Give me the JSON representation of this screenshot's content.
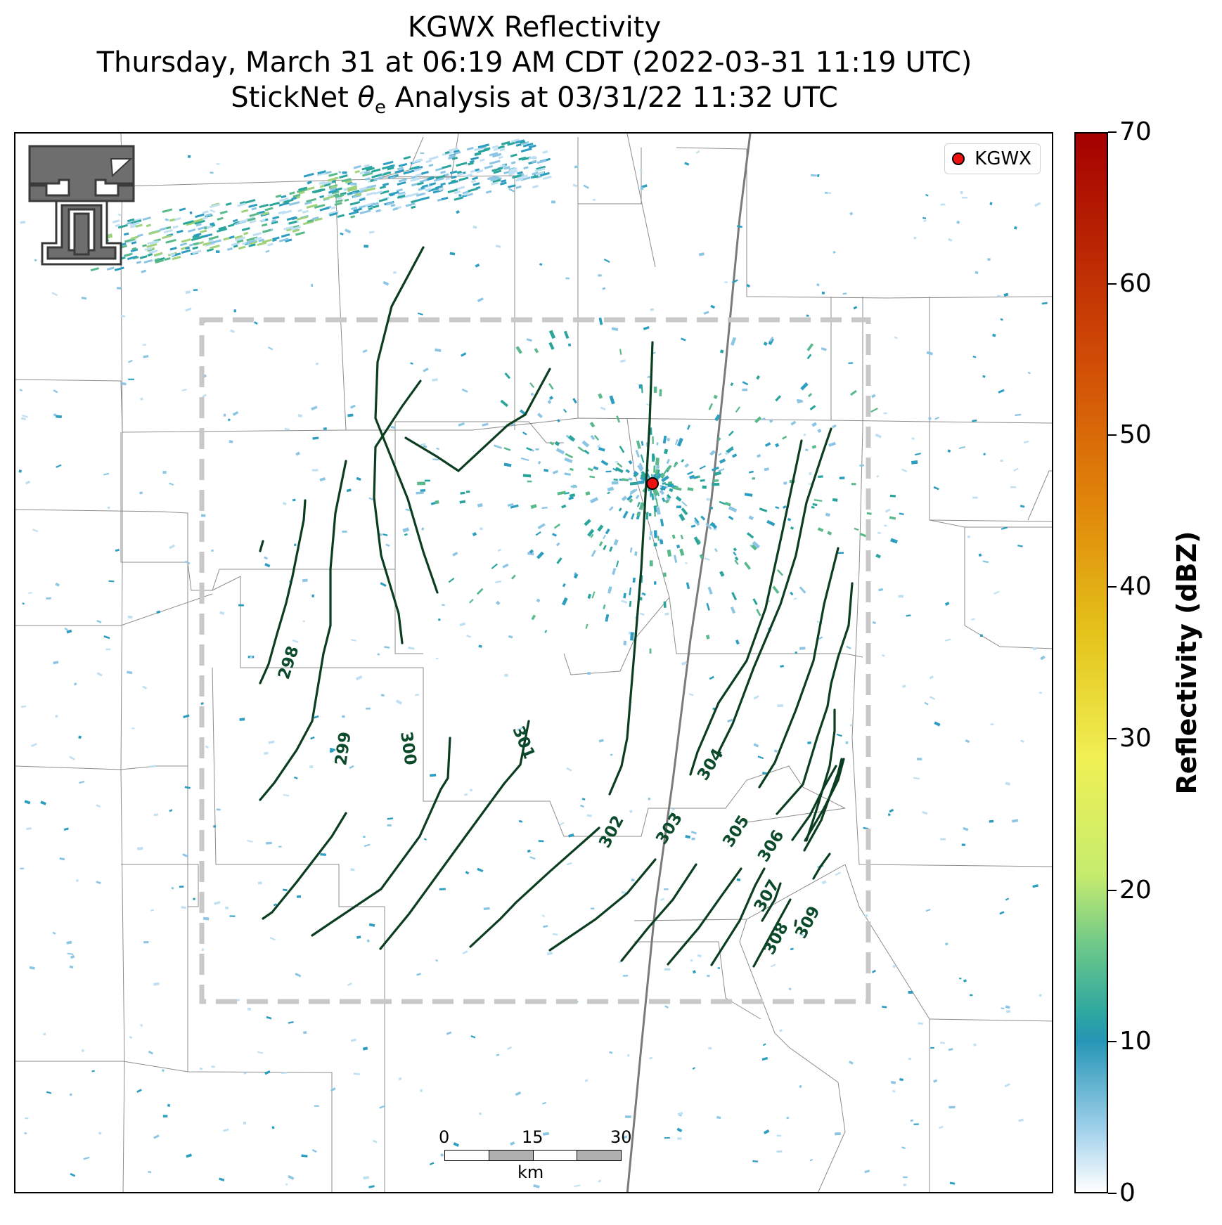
{
  "title": {
    "line1": "KGWX Reflectivity",
    "line2": "Thursday, March 31 at 06:19 AM CDT (2022-03-31 11:19 UTC)",
    "line3_prefix": "StickNet ",
    "line3_symbol": "θ",
    "line3_subscript": "e",
    "line3_suffix": " Analysis at 03/31/22 11:32 UTC"
  },
  "legend": {
    "label": "KGWX",
    "marker_color": "#ee1111"
  },
  "colorbar": {
    "title": "Reflectivity (dBZ)",
    "min": 0,
    "max": 70,
    "ticks": [
      "0",
      "10",
      "20",
      "30",
      "40",
      "50",
      "60",
      "70"
    ]
  },
  "scale_bar": {
    "ticks": [
      "0",
      "15",
      "30"
    ],
    "unit": "km"
  },
  "contours": {
    "color": "#0b3d20",
    "labels": [
      "298",
      "299",
      "300",
      "301",
      "302",
      "303",
      "304",
      "305",
      "306",
      "307",
      "308",
      "309"
    ]
  },
  "logo": {
    "name": "Texas Tech Double T"
  }
}
